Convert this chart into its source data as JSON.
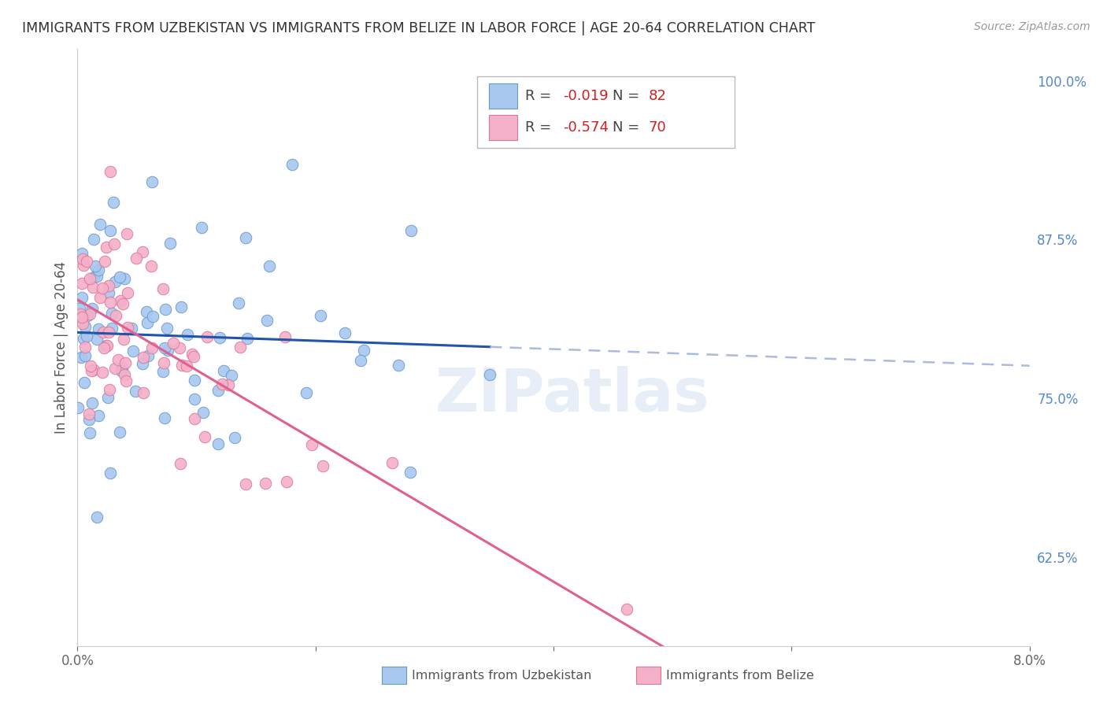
{
  "title": "IMMIGRANTS FROM UZBEKISTAN VS IMMIGRANTS FROM BELIZE IN LABOR FORCE | AGE 20-64 CORRELATION CHART",
  "source": "Source: ZipAtlas.com",
  "ylabel": "In Labor Force | Age 20-64",
  "right_yticks": [
    0.625,
    0.75,
    0.875,
    1.0
  ],
  "right_yticklabels": [
    "62.5%",
    "75.0%",
    "87.5%",
    "100.0%"
  ],
  "xlim": [
    0.0,
    0.08
  ],
  "ylim": [
    0.555,
    1.025
  ],
  "series": [
    {
      "name": "Immigrants from Uzbekistan",
      "R": -0.019,
      "N": 82,
      "color": "#a8c8f0",
      "edge_color": "#6699cc",
      "trend_color": "#2255aa",
      "trend_color_dashed": "#aabbdd"
    },
    {
      "name": "Immigrants from Belize",
      "R": -0.574,
      "N": 70,
      "color": "#f4b0c8",
      "edge_color": "#dd7799",
      "trend_color": "#e06090"
    }
  ],
  "watermark": "ZIPatlas",
  "background_color": "#ffffff",
  "grid_color": "#c8d4e8",
  "title_color": "#333333",
  "right_axis_color": "#5588cc"
}
